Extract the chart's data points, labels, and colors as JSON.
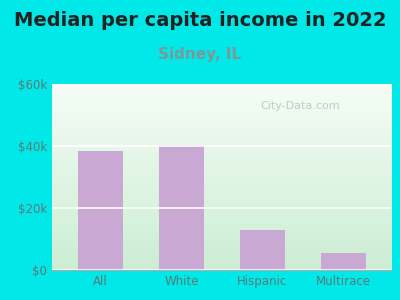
{
  "title": "Median per capita income in 2022",
  "subtitle": "Sidney, IL",
  "categories": [
    "All",
    "White",
    "Hispanic",
    "Multirace"
  ],
  "values": [
    38500,
    40200,
    13000,
    5500
  ],
  "bar_color": "#c9a8d4",
  "title_fontsize": 14,
  "subtitle_fontsize": 11,
  "subtitle_color": "#7a9a9a",
  "title_color": "#222222",
  "tick_color": "#5a7a7a",
  "background_outer": "#00e8e8",
  "background_grad_topleft": "#e0f0e0",
  "background_grad_topright": "#f5faf5",
  "background_grad_bottom": "#c8ecd4",
  "ylim": [
    0,
    60000
  ],
  "yticks": [
    0,
    20000,
    40000,
    60000
  ],
  "ytick_labels": [
    "$0",
    "$20k",
    "$40k",
    "$60k"
  ],
  "watermark": "City-Data.com"
}
